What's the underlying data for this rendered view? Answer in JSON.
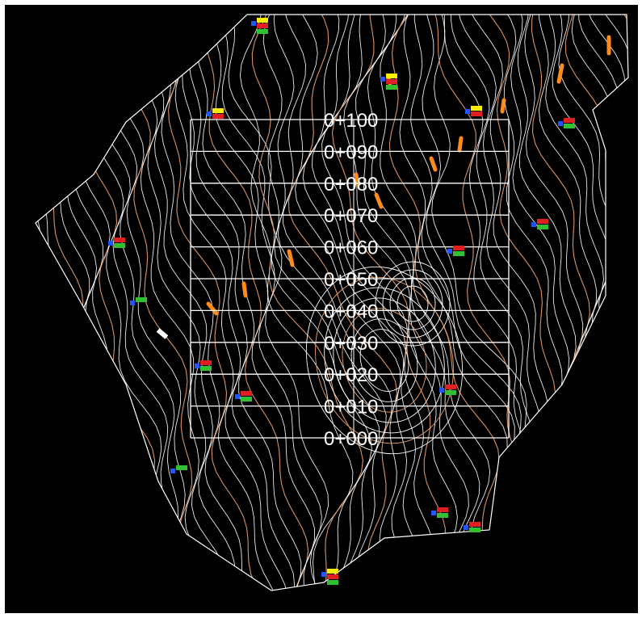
{
  "view": {
    "background": "#000000",
    "frame_color": "#ffffff",
    "contour_colors": {
      "minor": "#ffffff",
      "major": "#e8a06a"
    }
  },
  "grid": {
    "line_color": "#ffffff",
    "chainage_labels": [
      "0+100",
      "0+090",
      "0+080",
      "0+070",
      "0+060",
      "0+050",
      "0+040",
      "0+030",
      "0+020",
      "0+010",
      "0+000"
    ]
  },
  "markers": [
    {
      "id": "station-marker",
      "colors": [
        "#2255ff",
        "#ffee00",
        "#e02020",
        "#30c030"
      ]
    },
    {
      "id": "station-marker",
      "colors": [
        "#2255ff",
        "#ffee00",
        "#e02020",
        "#30c030"
      ]
    },
    {
      "id": "station-marker",
      "colors": [
        "#2255ff",
        "#ffee00",
        "#e02020"
      ]
    },
    {
      "id": "station-marker",
      "colors": [
        "#2255ff",
        "#e02020",
        "#30c030"
      ]
    },
    {
      "id": "station-marker",
      "colors": [
        "#2255ff",
        "#ffee00",
        "#e02020"
      ]
    },
    {
      "id": "station-marker",
      "colors": [
        "#2255ff",
        "#e02020",
        "#30c030"
      ]
    },
    {
      "id": "station-marker",
      "colors": [
        "#2255ff",
        "#e02020",
        "#30c030"
      ]
    },
    {
      "id": "station-marker",
      "colors": [
        "#2255ff",
        "#30c030"
      ]
    },
    {
      "id": "station-marker",
      "colors": [
        "#2255ff",
        "#e02020",
        "#30c030"
      ]
    },
    {
      "id": "station-marker",
      "colors": [
        "#2255ff",
        "#e02020",
        "#30c030"
      ]
    },
    {
      "id": "station-marker",
      "colors": [
        "#2255ff",
        "#e02020",
        "#30c030"
      ]
    },
    {
      "id": "station-marker",
      "colors": [
        "#2255ff",
        "#30c030"
      ]
    },
    {
      "id": "station-marker",
      "colors": [
        "#2255ff",
        "#e02020",
        "#30c030"
      ]
    },
    {
      "id": "station-marker",
      "colors": [
        "#2255ff",
        "#e02020",
        "#30c030"
      ]
    },
    {
      "id": "station-marker",
      "colors": [
        "#2255ff",
        "#ffee00",
        "#e02020",
        "#30c030"
      ]
    },
    {
      "id": "station-marker",
      "colors": [
        "#2255ff",
        "#e02020",
        "#30c030"
      ]
    }
  ],
  "accent_color": "#ff8c1a"
}
